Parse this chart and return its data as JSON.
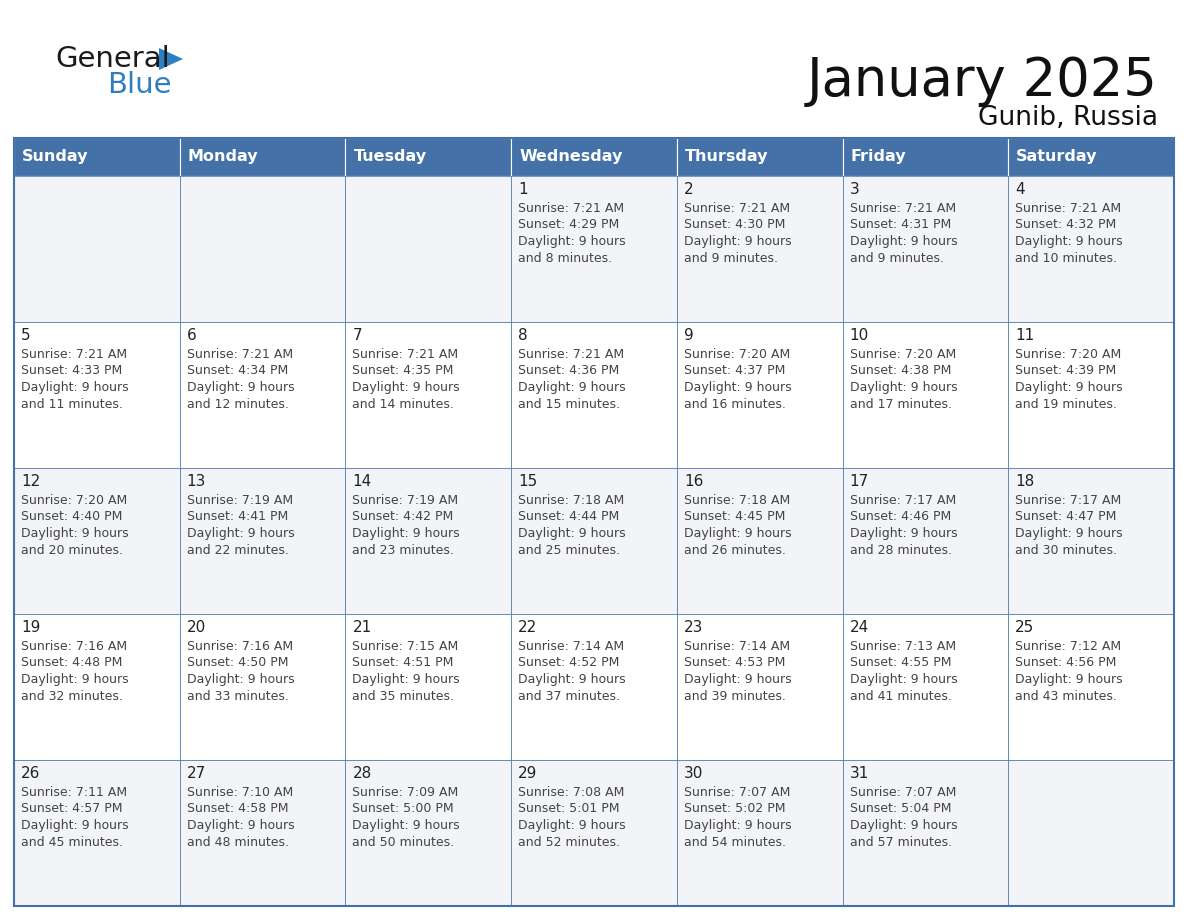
{
  "title": "January 2025",
  "subtitle": "Gunib, Russia",
  "days_of_week": [
    "Sunday",
    "Monday",
    "Tuesday",
    "Wednesday",
    "Thursday",
    "Friday",
    "Saturday"
  ],
  "header_bg": "#4472a8",
  "header_text": "#ffffff",
  "cell_bg_odd": "#f2f4f7",
  "cell_bg_even": "#ffffff",
  "border_color": "#4472a8",
  "day_num_color": "#222222",
  "text_color": "#444444",
  "logo_general_color": "#1a1a1a",
  "logo_blue_color": "#2e7fc1",
  "logo_triangle_color": "#2e7fc1",
  "calendar_data": [
    [
      {
        "day": "",
        "lines": []
      },
      {
        "day": "",
        "lines": []
      },
      {
        "day": "",
        "lines": []
      },
      {
        "day": "1",
        "lines": [
          "Sunrise: 7:21 AM",
          "Sunset: 4:29 PM",
          "Daylight: 9 hours",
          "and 8 minutes."
        ]
      },
      {
        "day": "2",
        "lines": [
          "Sunrise: 7:21 AM",
          "Sunset: 4:30 PM",
          "Daylight: 9 hours",
          "and 9 minutes."
        ]
      },
      {
        "day": "3",
        "lines": [
          "Sunrise: 7:21 AM",
          "Sunset: 4:31 PM",
          "Daylight: 9 hours",
          "and 9 minutes."
        ]
      },
      {
        "day": "4",
        "lines": [
          "Sunrise: 7:21 AM",
          "Sunset: 4:32 PM",
          "Daylight: 9 hours",
          "and 10 minutes."
        ]
      }
    ],
    [
      {
        "day": "5",
        "lines": [
          "Sunrise: 7:21 AM",
          "Sunset: 4:33 PM",
          "Daylight: 9 hours",
          "and 11 minutes."
        ]
      },
      {
        "day": "6",
        "lines": [
          "Sunrise: 7:21 AM",
          "Sunset: 4:34 PM",
          "Daylight: 9 hours",
          "and 12 minutes."
        ]
      },
      {
        "day": "7",
        "lines": [
          "Sunrise: 7:21 AM",
          "Sunset: 4:35 PM",
          "Daylight: 9 hours",
          "and 14 minutes."
        ]
      },
      {
        "day": "8",
        "lines": [
          "Sunrise: 7:21 AM",
          "Sunset: 4:36 PM",
          "Daylight: 9 hours",
          "and 15 minutes."
        ]
      },
      {
        "day": "9",
        "lines": [
          "Sunrise: 7:20 AM",
          "Sunset: 4:37 PM",
          "Daylight: 9 hours",
          "and 16 minutes."
        ]
      },
      {
        "day": "10",
        "lines": [
          "Sunrise: 7:20 AM",
          "Sunset: 4:38 PM",
          "Daylight: 9 hours",
          "and 17 minutes."
        ]
      },
      {
        "day": "11",
        "lines": [
          "Sunrise: 7:20 AM",
          "Sunset: 4:39 PM",
          "Daylight: 9 hours",
          "and 19 minutes."
        ]
      }
    ],
    [
      {
        "day": "12",
        "lines": [
          "Sunrise: 7:20 AM",
          "Sunset: 4:40 PM",
          "Daylight: 9 hours",
          "and 20 minutes."
        ]
      },
      {
        "day": "13",
        "lines": [
          "Sunrise: 7:19 AM",
          "Sunset: 4:41 PM",
          "Daylight: 9 hours",
          "and 22 minutes."
        ]
      },
      {
        "day": "14",
        "lines": [
          "Sunrise: 7:19 AM",
          "Sunset: 4:42 PM",
          "Daylight: 9 hours",
          "and 23 minutes."
        ]
      },
      {
        "day": "15",
        "lines": [
          "Sunrise: 7:18 AM",
          "Sunset: 4:44 PM",
          "Daylight: 9 hours",
          "and 25 minutes."
        ]
      },
      {
        "day": "16",
        "lines": [
          "Sunrise: 7:18 AM",
          "Sunset: 4:45 PM",
          "Daylight: 9 hours",
          "and 26 minutes."
        ]
      },
      {
        "day": "17",
        "lines": [
          "Sunrise: 7:17 AM",
          "Sunset: 4:46 PM",
          "Daylight: 9 hours",
          "and 28 minutes."
        ]
      },
      {
        "day": "18",
        "lines": [
          "Sunrise: 7:17 AM",
          "Sunset: 4:47 PM",
          "Daylight: 9 hours",
          "and 30 minutes."
        ]
      }
    ],
    [
      {
        "day": "19",
        "lines": [
          "Sunrise: 7:16 AM",
          "Sunset: 4:48 PM",
          "Daylight: 9 hours",
          "and 32 minutes."
        ]
      },
      {
        "day": "20",
        "lines": [
          "Sunrise: 7:16 AM",
          "Sunset: 4:50 PM",
          "Daylight: 9 hours",
          "and 33 minutes."
        ]
      },
      {
        "day": "21",
        "lines": [
          "Sunrise: 7:15 AM",
          "Sunset: 4:51 PM",
          "Daylight: 9 hours",
          "and 35 minutes."
        ]
      },
      {
        "day": "22",
        "lines": [
          "Sunrise: 7:14 AM",
          "Sunset: 4:52 PM",
          "Daylight: 9 hours",
          "and 37 minutes."
        ]
      },
      {
        "day": "23",
        "lines": [
          "Sunrise: 7:14 AM",
          "Sunset: 4:53 PM",
          "Daylight: 9 hours",
          "and 39 minutes."
        ]
      },
      {
        "day": "24",
        "lines": [
          "Sunrise: 7:13 AM",
          "Sunset: 4:55 PM",
          "Daylight: 9 hours",
          "and 41 minutes."
        ]
      },
      {
        "day": "25",
        "lines": [
          "Sunrise: 7:12 AM",
          "Sunset: 4:56 PM",
          "Daylight: 9 hours",
          "and 43 minutes."
        ]
      }
    ],
    [
      {
        "day": "26",
        "lines": [
          "Sunrise: 7:11 AM",
          "Sunset: 4:57 PM",
          "Daylight: 9 hours",
          "and 45 minutes."
        ]
      },
      {
        "day": "27",
        "lines": [
          "Sunrise: 7:10 AM",
          "Sunset: 4:58 PM",
          "Daylight: 9 hours",
          "and 48 minutes."
        ]
      },
      {
        "day": "28",
        "lines": [
          "Sunrise: 7:09 AM",
          "Sunset: 5:00 PM",
          "Daylight: 9 hours",
          "and 50 minutes."
        ]
      },
      {
        "day": "29",
        "lines": [
          "Sunrise: 7:08 AM",
          "Sunset: 5:01 PM",
          "Daylight: 9 hours",
          "and 52 minutes."
        ]
      },
      {
        "day": "30",
        "lines": [
          "Sunrise: 7:07 AM",
          "Sunset: 5:02 PM",
          "Daylight: 9 hours",
          "and 54 minutes."
        ]
      },
      {
        "day": "31",
        "lines": [
          "Sunrise: 7:07 AM",
          "Sunset: 5:04 PM",
          "Daylight: 9 hours",
          "and 57 minutes."
        ]
      },
      {
        "day": "",
        "lines": []
      }
    ]
  ]
}
